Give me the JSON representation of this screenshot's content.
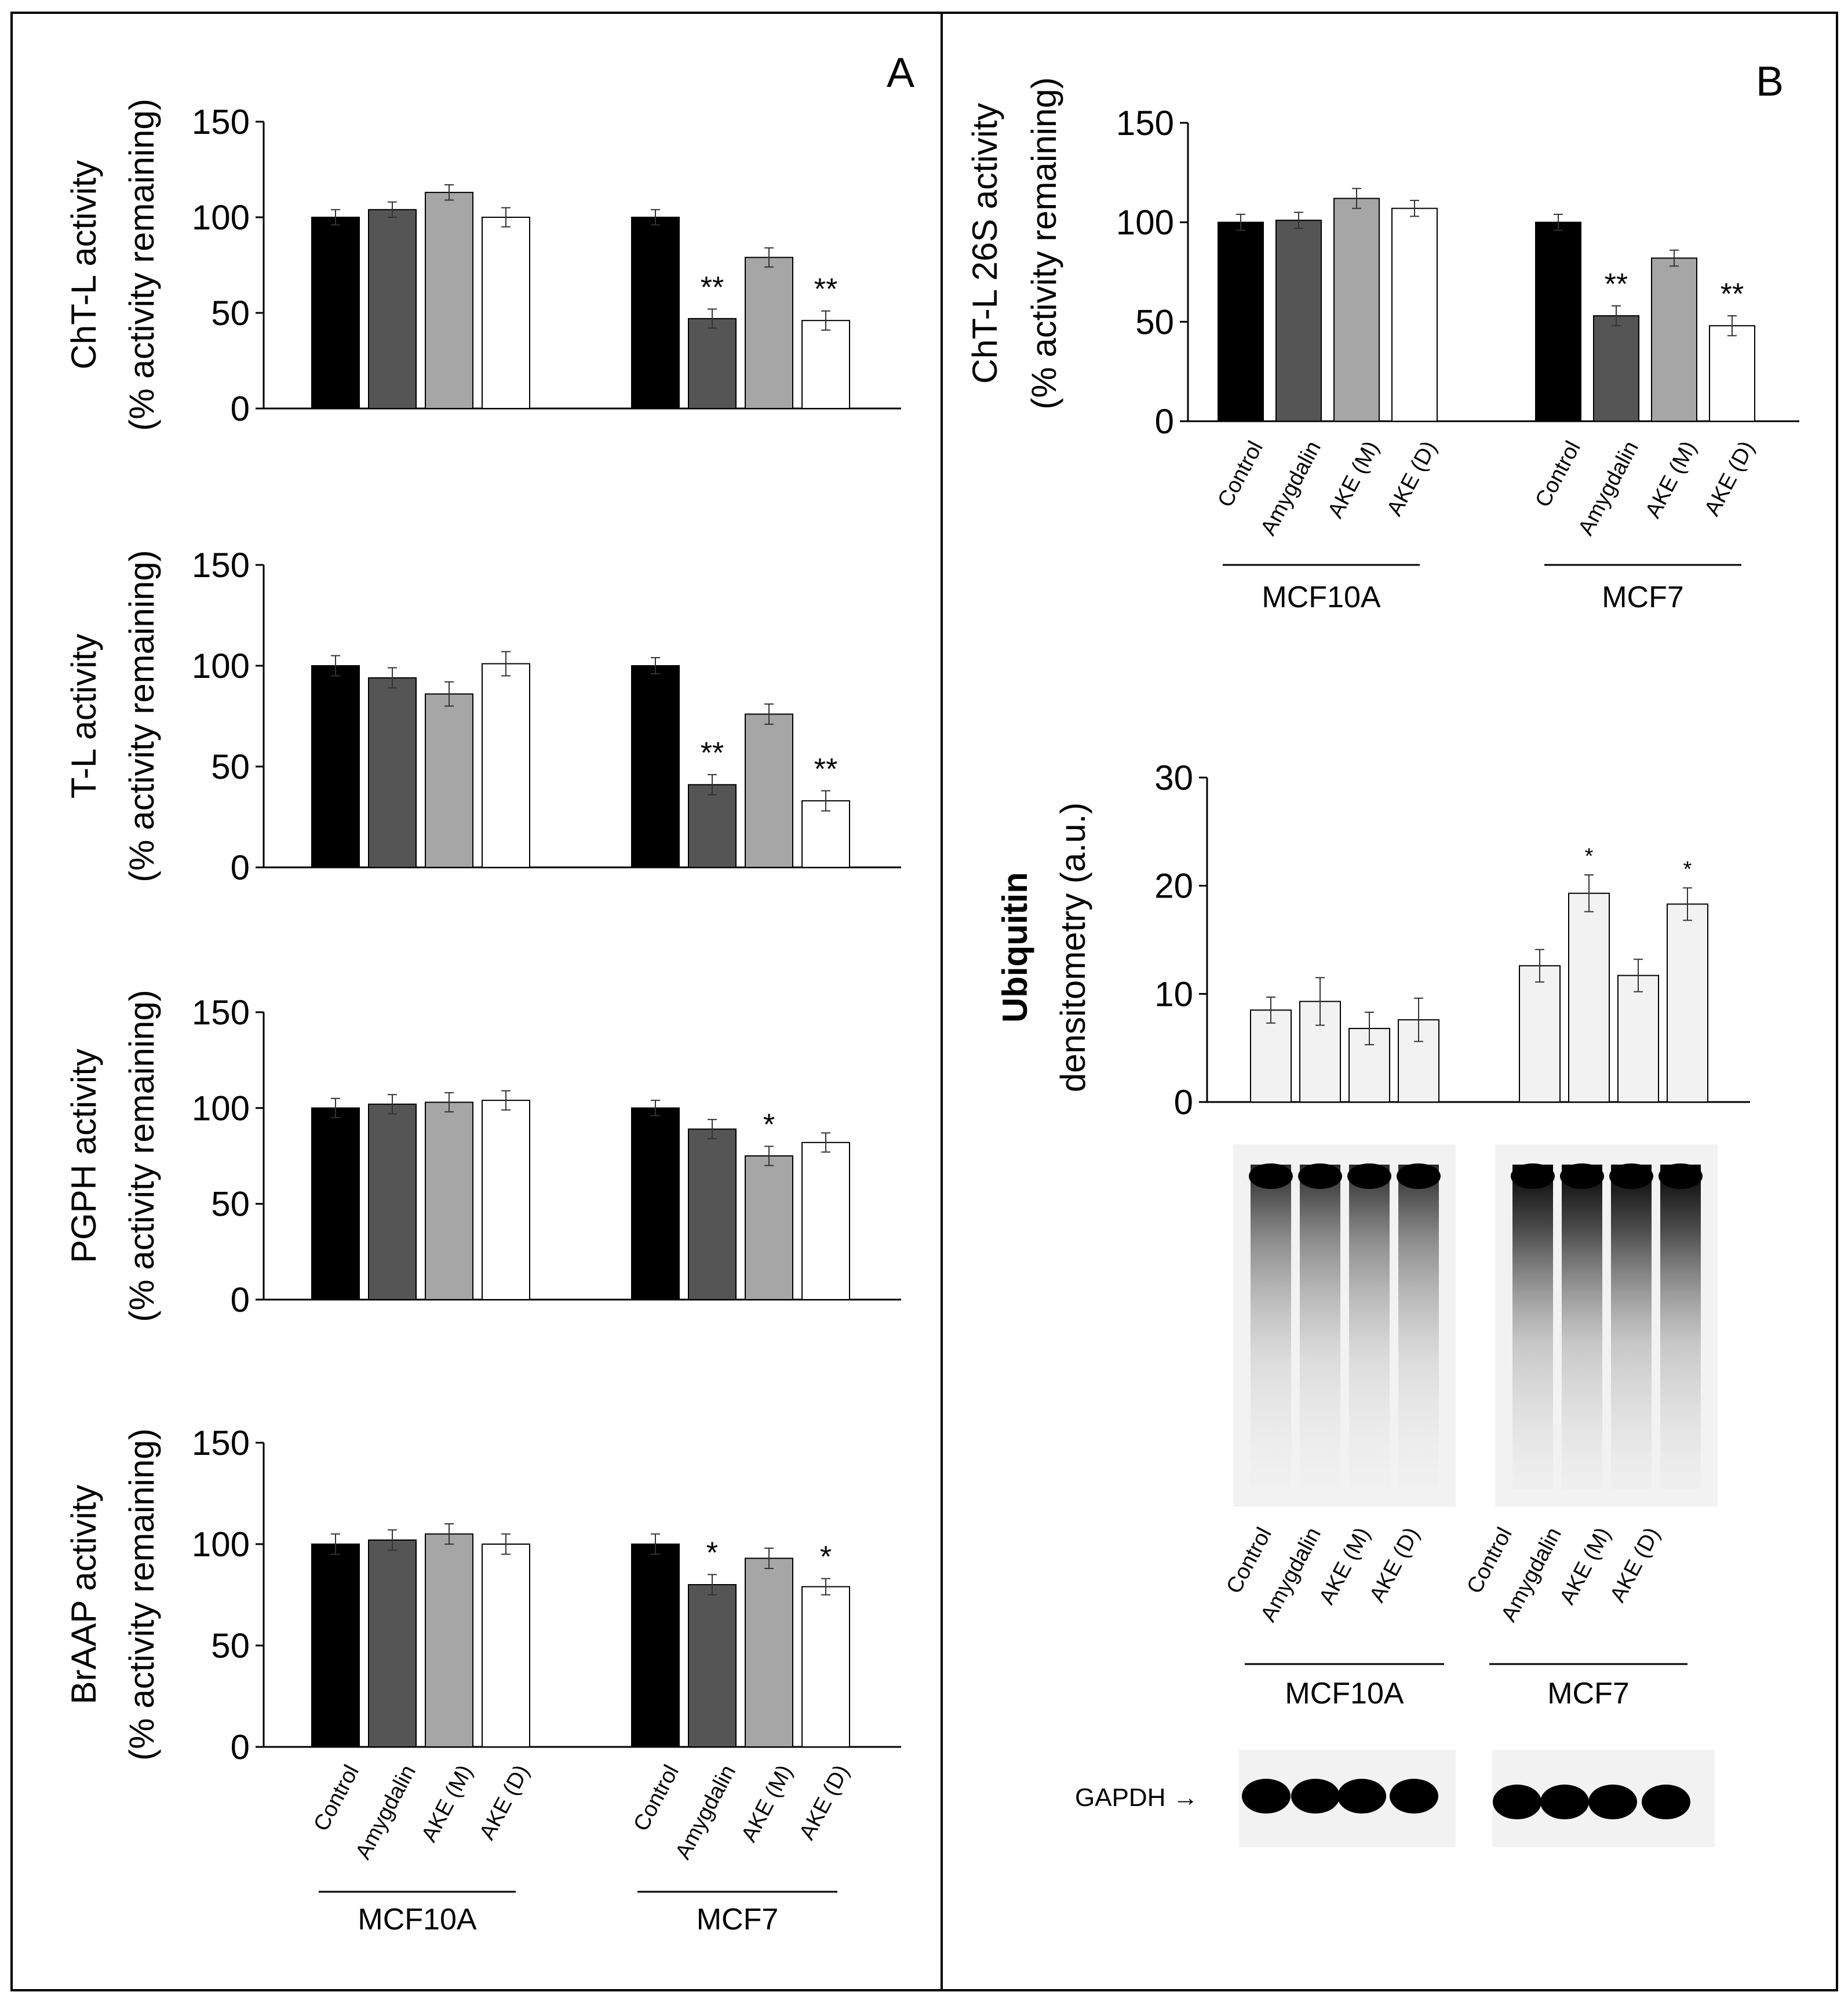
{
  "panels": {
    "A": "A",
    "B": "B"
  },
  "colors": {
    "Control": "#000000",
    "Amygdalin": "#555555",
    "AKE (M)": "#a6a6a6",
    "AKE (D)": "#ffffff",
    "ubiquitin_bar": "#f2f2f2",
    "blot_band": "#000000"
  },
  "chart_data": [
    {
      "id": "cht-l-activity",
      "panel": "A",
      "type": "bar",
      "ylabel": [
        "ChT-L activity",
        "(% activity remaining)"
      ],
      "ylim": [
        0,
        150
      ],
      "yticks": [
        0,
        50,
        100,
        150
      ],
      "groups": [
        "MCF10A",
        "MCF7"
      ],
      "categories": [
        "Control",
        "Amygdalin",
        "AKE (M)",
        "AKE (D)"
      ],
      "values": [
        [
          100,
          104,
          113,
          100
        ],
        [
          100,
          47,
          79,
          46
        ]
      ],
      "errors": [
        [
          4,
          4,
          4,
          5
        ],
        [
          4,
          5,
          5,
          5
        ]
      ],
      "significance": [
        [
          "",
          "",
          "",
          ""
        ],
        [
          "",
          "**",
          "",
          "**"
        ]
      ],
      "grid": false
    },
    {
      "id": "t-l-activity",
      "panel": "A",
      "type": "bar",
      "ylabel": [
        "T-L activity",
        "(% activity remaining)"
      ],
      "ylim": [
        0,
        150
      ],
      "yticks": [
        0,
        50,
        100,
        150
      ],
      "groups": [
        "MCF10A",
        "MCF7"
      ],
      "categories": [
        "Control",
        "Amygdalin",
        "AKE (M)",
        "AKE (D)"
      ],
      "values": [
        [
          100,
          94,
          86,
          101
        ],
        [
          100,
          41,
          76,
          33
        ]
      ],
      "errors": [
        [
          5,
          5,
          6,
          6
        ],
        [
          4,
          5,
          5,
          5
        ]
      ],
      "significance": [
        [
          "",
          "",
          "",
          ""
        ],
        [
          "",
          "**",
          "",
          "**"
        ]
      ],
      "grid": false
    },
    {
      "id": "pgph-activity",
      "panel": "A",
      "type": "bar",
      "ylabel": [
        "PGPH activity",
        "(% activity remaining)"
      ],
      "ylim": [
        0,
        150
      ],
      "yticks": [
        0,
        50,
        100,
        150
      ],
      "groups": [
        "MCF10A",
        "MCF7"
      ],
      "categories": [
        "Control",
        "Amygdalin",
        "AKE (M)",
        "AKE (D)"
      ],
      "values": [
        [
          100,
          102,
          103,
          104
        ],
        [
          100,
          89,
          75,
          82
        ]
      ],
      "errors": [
        [
          5,
          5,
          5,
          5
        ],
        [
          4,
          5,
          5,
          5
        ]
      ],
      "significance": [
        [
          "",
          "",
          "",
          ""
        ],
        [
          "",
          "",
          "*",
          ""
        ]
      ],
      "grid": false
    },
    {
      "id": "braap-activity",
      "panel": "A",
      "type": "bar",
      "ylabel": [
        "BrAAP activity",
        "(% activity remaining)"
      ],
      "ylim": [
        0,
        150
      ],
      "yticks": [
        0,
        50,
        100,
        150
      ],
      "groups": [
        "MCF10A",
        "MCF7"
      ],
      "categories": [
        "Control",
        "Amygdalin",
        "AKE (M)",
        "AKE (D)"
      ],
      "values": [
        [
          100,
          102,
          105,
          100
        ],
        [
          100,
          80,
          93,
          79
        ]
      ],
      "errors": [
        [
          5,
          5,
          5,
          5
        ],
        [
          5,
          5,
          5,
          4
        ]
      ],
      "significance": [
        [
          "",
          "",
          "",
          ""
        ],
        [
          "",
          "*",
          "",
          "*"
        ]
      ],
      "grid": false
    },
    {
      "id": "cht-l-26s-activity",
      "panel": "B",
      "type": "bar",
      "ylabel": [
        "ChT-L 26S activity",
        "(% activity remaining)"
      ],
      "ylim": [
        0,
        150
      ],
      "yticks": [
        0,
        50,
        100,
        150
      ],
      "groups": [
        "MCF10A",
        "MCF7"
      ],
      "categories": [
        "Control",
        "Amygdalin",
        "AKE (M)",
        "AKE (D)"
      ],
      "values": [
        [
          100,
          101,
          112,
          107
        ],
        [
          100,
          53,
          82,
          48
        ]
      ],
      "errors": [
        [
          4,
          4,
          5,
          4
        ],
        [
          4,
          5,
          4,
          5
        ]
      ],
      "significance": [
        [
          "",
          "",
          "",
          ""
        ],
        [
          "",
          "**",
          "",
          "**"
        ]
      ],
      "grid": false
    },
    {
      "id": "ubiquitin-densitometry",
      "panel": "B",
      "type": "bar",
      "ylabel": [
        "Ubiquitin",
        "densitometry (a.u.)"
      ],
      "ylim": [
        0,
        30
      ],
      "yticks": [
        0,
        10,
        20,
        30
      ],
      "groups": [
        "MCF10A",
        "MCF7"
      ],
      "categories": [
        "Control",
        "Amygdalin",
        "AKE (M)",
        "AKE (D)"
      ],
      "values": [
        [
          8.5,
          9.3,
          6.8,
          7.6
        ],
        [
          12.6,
          19.3,
          11.7,
          18.3
        ]
      ],
      "errors": [
        [
          1.2,
          2.2,
          1.5,
          2.0
        ],
        [
          1.5,
          1.7,
          1.5,
          1.5
        ]
      ],
      "significance": [
        [
          "",
          "",
          "",
          ""
        ],
        [
          "",
          "*",
          "",
          "*"
        ]
      ],
      "grid": false
    }
  ],
  "blot": {
    "lanes": [
      "Control",
      "Amygdalin",
      "AKE (M)",
      "AKE (D)"
    ],
    "groups": [
      "MCF10A",
      "MCF7"
    ],
    "loading_control": "GAPDH →"
  }
}
